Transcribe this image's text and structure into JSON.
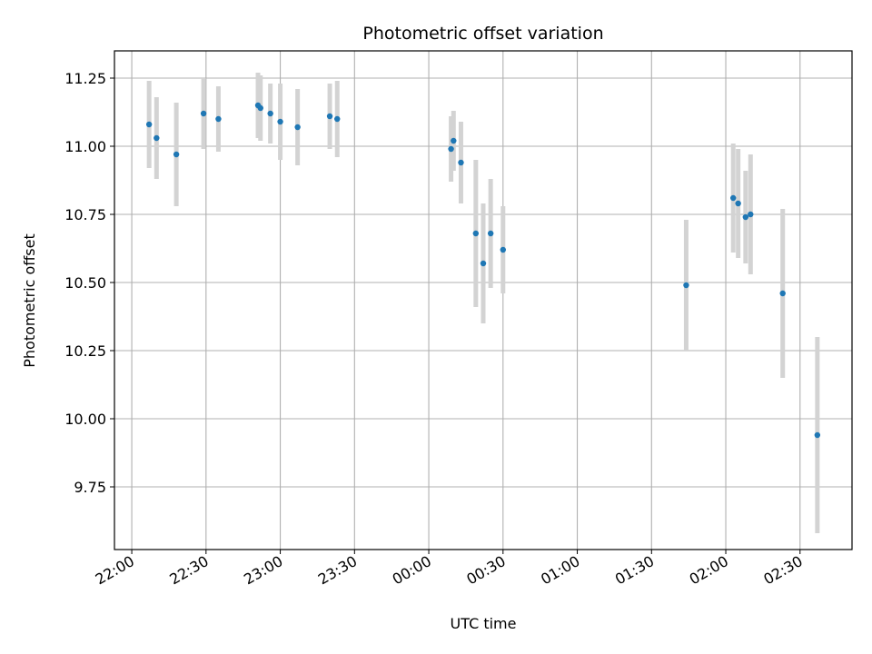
{
  "chart_data": {
    "type": "scatter",
    "title": "Photometric offset variation",
    "xlabel": "UTC time",
    "ylabel": "Photometric offset",
    "grid": true,
    "colors": {
      "point": "#1f77b4",
      "errorbar": "#d3d3d3",
      "grid": "#b0b0b0"
    },
    "x_ticks": [
      "22:00",
      "22:30",
      "23:00",
      "23:30",
      "00:00",
      "00:30",
      "01:00",
      "01:30",
      "02:00",
      "02:30"
    ],
    "y_ticks": [
      "9.75",
      "10.00",
      "10.25",
      "10.50",
      "10.75",
      "11.00",
      "11.25"
    ],
    "xlim": [
      "21:53",
      "02:51"
    ],
    "ylim": [
      9.52,
      11.35
    ],
    "points": [
      {
        "x": "22:07",
        "y": 11.08,
        "err": 0.16
      },
      {
        "x": "22:10",
        "y": 11.03,
        "err": 0.15
      },
      {
        "x": "22:18",
        "y": 10.97,
        "err": 0.19
      },
      {
        "x": "22:29",
        "y": 11.12,
        "err": 0.13
      },
      {
        "x": "22:35",
        "y": 11.1,
        "err": 0.12
      },
      {
        "x": "22:51",
        "y": 11.15,
        "err": 0.12
      },
      {
        "x": "22:52",
        "y": 11.14,
        "err": 0.12
      },
      {
        "x": "22:56",
        "y": 11.12,
        "err": 0.11
      },
      {
        "x": "23:00",
        "y": 11.09,
        "err": 0.14
      },
      {
        "x": "23:07",
        "y": 11.07,
        "err": 0.14
      },
      {
        "x": "23:20",
        "y": 11.11,
        "err": 0.12
      },
      {
        "x": "23:23",
        "y": 11.1,
        "err": 0.14
      },
      {
        "x": "00:09",
        "y": 10.99,
        "err": 0.12
      },
      {
        "x": "00:10",
        "y": 11.02,
        "err": 0.11
      },
      {
        "x": "00:13",
        "y": 10.94,
        "err": 0.15
      },
      {
        "x": "00:19",
        "y": 10.68,
        "err": 0.27
      },
      {
        "x": "00:22",
        "y": 10.57,
        "err": 0.22
      },
      {
        "x": "00:25",
        "y": 10.68,
        "err": 0.2
      },
      {
        "x": "00:30",
        "y": 10.62,
        "err": 0.16
      },
      {
        "x": "01:44",
        "y": 10.49,
        "err": 0.24
      },
      {
        "x": "02:03",
        "y": 10.81,
        "err": 0.2
      },
      {
        "x": "02:05",
        "y": 10.79,
        "err": 0.2
      },
      {
        "x": "02:08",
        "y": 10.74,
        "err": 0.17
      },
      {
        "x": "02:10",
        "y": 10.75,
        "err": 0.22
      },
      {
        "x": "02:23",
        "y": 10.46,
        "err": 0.31
      },
      {
        "x": "02:37",
        "y": 9.94,
        "err": 0.36
      }
    ]
  }
}
